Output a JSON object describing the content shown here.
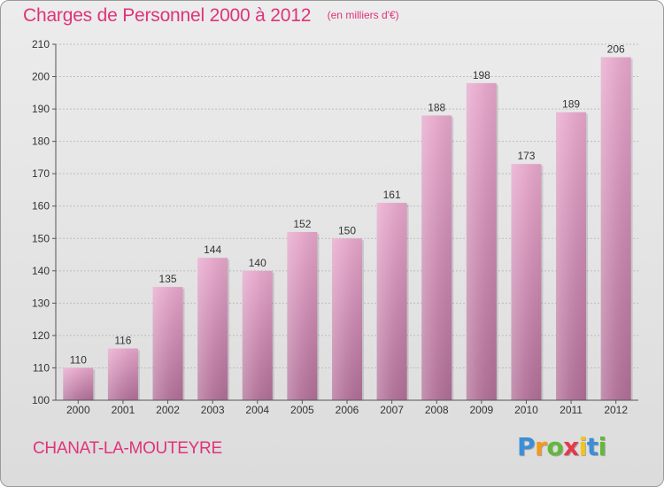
{
  "header": {
    "title": "Charges de Personnel 2000 à 2012",
    "subtitle": "(en milliers d'€)"
  },
  "footer": {
    "commune": "CHANAT-LA-MOUTEYRE",
    "logo_letters": [
      {
        "char": "P",
        "color": "#3a8fd6"
      },
      {
        "char": "r",
        "color": "#f39a1b"
      },
      {
        "char": "o",
        "color": "#63b83c"
      },
      {
        "char": "x",
        "color": "#e23a4c"
      },
      {
        "char": "i",
        "color": "#f3c51b"
      },
      {
        "char": "t",
        "color": "#3a8fd6"
      },
      {
        "char": "i",
        "color": "#63b83c"
      }
    ]
  },
  "colors": {
    "accent": "#e0337a",
    "bar_top": "#e6a6cb",
    "bar_bottom": "#b06e96"
  },
  "chart_data": {
    "type": "bar",
    "categories": [
      "2000",
      "2001",
      "2002",
      "2003",
      "2004",
      "2005",
      "2006",
      "2007",
      "2008",
      "2009",
      "2010",
      "2011",
      "2012"
    ],
    "values": [
      110,
      116,
      135,
      144,
      140,
      152,
      150,
      161,
      188,
      198,
      173,
      189,
      206
    ],
    "ylim": [
      100,
      210
    ],
    "yticks": [
      100,
      110,
      120,
      130,
      140,
      150,
      160,
      170,
      180,
      190,
      200,
      210
    ],
    "grid": true,
    "xlabel": "",
    "ylabel": ""
  }
}
